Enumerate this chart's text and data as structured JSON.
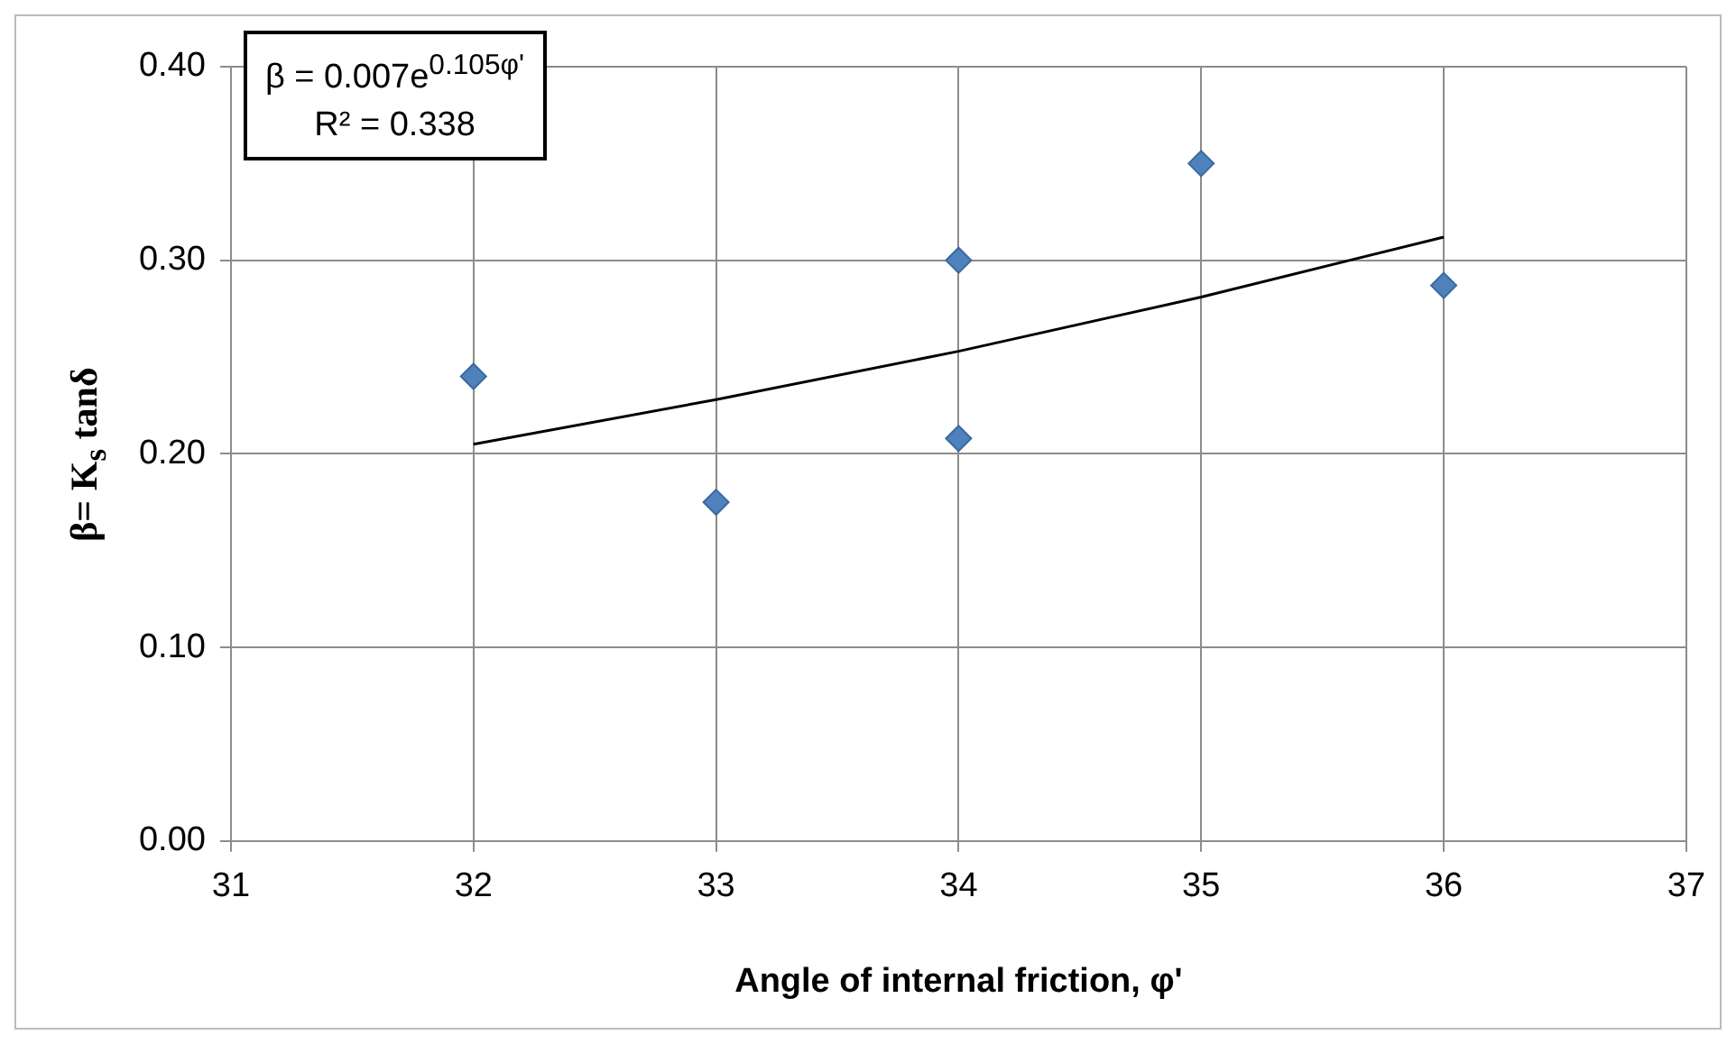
{
  "chart_data": {
    "type": "scatter",
    "xlabel": "Angle of internal friction, φ'",
    "ylabel": "β= K$_{s}$ tanδ",
    "annotations": [
      "β = 0.007e$^{0.105φ'}$",
      "R² = 0.338"
    ],
    "series": [
      {
        "type": "scatter",
        "color": "#4f81bd",
        "marker": "diamond",
        "x": [
          32,
          33,
          34,
          34,
          35,
          36
        ],
        "values": [
          0.24,
          0.175,
          0.3,
          0.208,
          0.35,
          0.287
        ]
      },
      {
        "type": "line",
        "color": "#000000",
        "marker": "none",
        "line_style": "solid",
        "x": [
          32,
          33,
          34,
          35,
          36
        ],
        "values": [
          0.205,
          0.228,
          0.253,
          0.281,
          0.312
        ]
      }
    ],
    "xlim": [
      31,
      37
    ],
    "xticks": [
      31,
      32,
      33,
      34,
      35,
      36,
      37
    ],
    "ylim": [
      0,
      0.4
    ],
    "yticks": [
      {
        "value": 0,
        "label": "0.00"
      },
      {
        "value": 0.1,
        "label": "0.10"
      },
      {
        "value": 0.2,
        "label": "0.20"
      },
      {
        "value": 0.3,
        "label": "0.30"
      },
      {
        "value": 0.4,
        "label": "0.40"
      }
    ],
    "grid": true,
    "legend": false
  }
}
